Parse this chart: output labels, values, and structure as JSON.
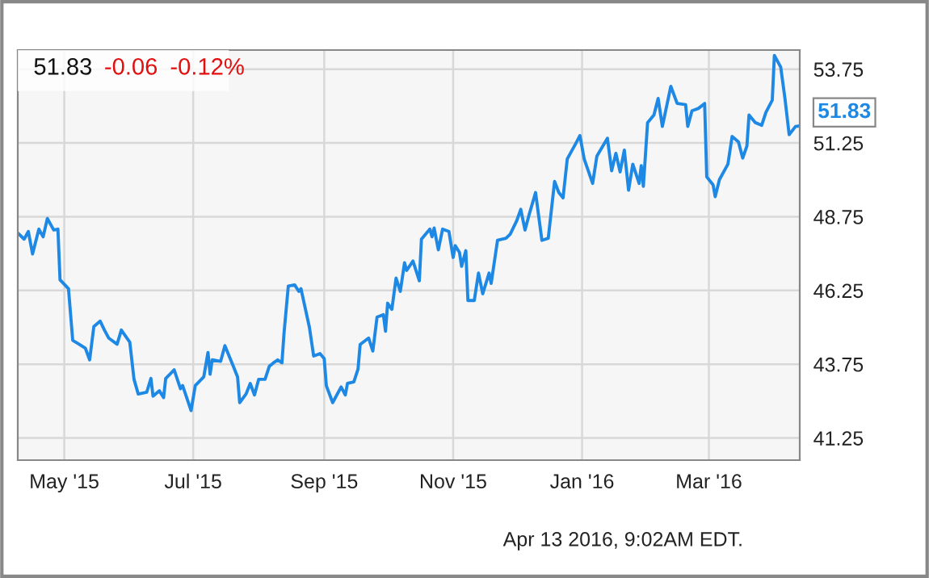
{
  "chart_data": {
    "type": "line",
    "x": [
      "2015-04-09",
      "2015-04-12",
      "2015-04-14",
      "2015-04-16",
      "2015-04-19",
      "2015-04-21",
      "2015-04-23",
      "2015-04-26",
      "2015-04-28",
      "2015-04-29",
      "2015-05-03",
      "2015-05-05",
      "2015-05-08",
      "2015-05-11",
      "2015-05-13",
      "2015-05-15",
      "2015-05-18",
      "2015-05-20",
      "2015-05-22",
      "2015-05-26",
      "2015-05-28",
      "2015-06-01",
      "2015-06-03",
      "2015-06-05",
      "2015-06-09",
      "2015-06-11",
      "2015-06-12",
      "2015-06-15",
      "2015-06-17",
      "2015-06-18",
      "2015-06-22",
      "2015-06-25",
      "2015-06-26",
      "2015-06-30",
      "2015-07-02",
      "2015-07-06",
      "2015-07-08",
      "2015-07-09",
      "2015-07-10",
      "2015-07-14",
      "2015-07-16",
      "2015-07-20",
      "2015-07-22",
      "2015-07-23",
      "2015-07-26",
      "2015-07-28",
      "2015-07-30",
      "2015-08-01",
      "2015-08-04",
      "2015-08-06",
      "2015-08-08",
      "2015-08-10",
      "2015-08-12",
      "2015-08-13",
      "2015-08-15",
      "2015-08-18",
      "2015-08-20",
      "2015-08-21",
      "2015-08-25",
      "2015-08-27",
      "2015-08-30",
      "2015-09-01",
      "2015-09-02",
      "2015-09-05",
      "2015-09-09",
      "2015-09-11",
      "2015-09-12",
      "2015-09-15",
      "2015-09-17",
      "2015-09-18",
      "2015-09-22",
      "2015-09-24",
      "2015-09-26",
      "2015-09-29",
      "2015-09-30",
      "2015-10-01",
      "2015-10-03",
      "2015-10-05",
      "2015-10-07",
      "2015-10-09",
      "2015-10-10",
      "2015-10-13",
      "2015-10-16",
      "2015-10-17",
      "2015-10-21",
      "2015-10-22",
      "2015-10-23",
      "2015-10-25",
      "2015-10-27",
      "2015-10-30",
      "2015-11-01",
      "2015-11-02",
      "2015-11-04",
      "2015-11-05",
      "2015-11-07",
      "2015-11-08",
      "2015-11-11",
      "2015-11-13",
      "2015-11-15",
      "2015-11-18",
      "2015-11-19",
      "2015-11-22",
      "2015-11-26",
      "2015-11-28",
      "2015-12-01",
      "2015-12-03",
      "2015-12-05",
      "2015-12-07",
      "2015-12-10",
      "2015-12-13",
      "2015-12-16",
      "2015-12-19",
      "2015-12-21",
      "2015-12-23",
      "2015-12-25",
      "2015-12-29",
      "2015-12-31",
      "2016-01-02",
      "2016-01-06",
      "2016-01-08",
      "2016-01-13",
      "2016-01-15",
      "2016-01-17",
      "2016-01-19",
      "2016-01-21",
      "2016-01-23",
      "2016-01-25",
      "2016-01-28",
      "2016-01-29",
      "2016-01-30",
      "2016-02-01",
      "2016-02-04",
      "2016-02-06",
      "2016-02-08",
      "2016-02-12",
      "2016-02-15",
      "2016-02-19",
      "2016-02-20",
      "2016-02-22",
      "2016-02-25",
      "2016-02-28",
      "2016-02-29",
      "2016-03-03",
      "2016-03-04",
      "2016-03-06",
      "2016-03-10",
      "2016-03-12",
      "2016-03-15",
      "2016-03-17",
      "2016-03-19",
      "2016-03-20",
      "2016-03-23",
      "2016-03-26",
      "2016-03-28",
      "2016-03-31",
      "2016-04-01",
      "2016-04-04",
      "2016-04-06",
      "2016-04-08",
      "2016-04-11",
      "2016-04-13"
    ],
    "series": [
      {
        "color": "#1e88e5",
        "values": [
          48.2,
          47.99,
          48.25,
          47.49,
          48.33,
          48.07,
          48.69,
          48.3,
          48.33,
          46.61,
          46.31,
          44.56,
          44.43,
          44.29,
          43.9,
          45.03,
          45.21,
          44.91,
          44.64,
          44.43,
          44.91,
          44.5,
          43.24,
          42.74,
          42.8,
          43.27,
          42.67,
          42.85,
          42.62,
          43.27,
          43.56,
          42.92,
          43.03,
          42.18,
          43.03,
          43.32,
          44.15,
          43.41,
          43.9,
          43.85,
          44.38,
          43.68,
          43.32,
          42.45,
          42.74,
          43.1,
          42.71,
          43.24,
          43.24,
          43.68,
          43.8,
          43.9,
          43.8,
          44.82,
          46.4,
          46.44,
          46.22,
          46.31,
          45.0,
          44.03,
          44.11,
          43.94,
          43.02,
          42.45,
          42.98,
          42.71,
          43.1,
          43.15,
          43.59,
          44.42,
          44.64,
          44.2,
          45.35,
          45.43,
          44.87,
          45.82,
          45.61,
          46.67,
          46.22,
          47.19,
          46.93,
          47.25,
          46.58,
          47.99,
          48.33,
          48.07,
          48.37,
          47.63,
          48.33,
          48.25,
          47.37,
          47.77,
          47.54,
          47.07,
          47.6,
          45.91,
          45.91,
          46.84,
          46.14,
          46.84,
          46.49,
          47.95,
          48.02,
          48.16,
          48.6,
          49.0,
          48.3,
          48.83,
          49.57,
          47.95,
          48.02,
          49.95,
          49.57,
          49.39,
          50.71,
          51.23,
          51.5,
          50.71,
          49.88,
          50.8,
          51.41,
          50.31,
          50.9,
          50.27,
          51.01,
          49.65,
          50.53,
          49.88,
          50.48,
          49.78,
          51.94,
          52.2,
          52.76,
          51.81,
          53.17,
          52.59,
          52.55,
          51.81,
          52.34,
          52.42,
          52.59,
          50.1,
          49.83,
          49.43,
          50.01,
          50.53,
          51.47,
          51.29,
          50.74,
          51.15,
          52.2,
          51.94,
          51.85,
          52.29,
          52.7,
          54.22,
          53.82,
          52.76,
          51.53,
          51.81,
          51.83
        ]
      }
    ],
    "xlim": [
      "2015-04-09",
      "2016-04-13"
    ],
    "xticks": [
      {
        "value": "2015-05-01",
        "label": "May '15"
      },
      {
        "value": "2015-07-01",
        "label": "Jul '15"
      },
      {
        "value": "2015-09-01",
        "label": "Sep '15"
      },
      {
        "value": "2015-11-01",
        "label": "Nov '15"
      },
      {
        "value": "2016-01-01",
        "label": "Jan '16"
      },
      {
        "value": "2016-03-01",
        "label": "Mar '16"
      }
    ],
    "ylim": [
      40.5,
      54.4
    ],
    "yticks": [
      41.25,
      43.75,
      46.25,
      48.75,
      51.25,
      53.75
    ],
    "grid": true,
    "annotations": [
      "51.83",
      "-0.06",
      "-0.12%",
      {
        "text": "51.83",
        "x": "2016-04-13",
        "y": 51.83
      },
      "Apr 13 2016, 9:02AM EDT."
    ]
  }
}
